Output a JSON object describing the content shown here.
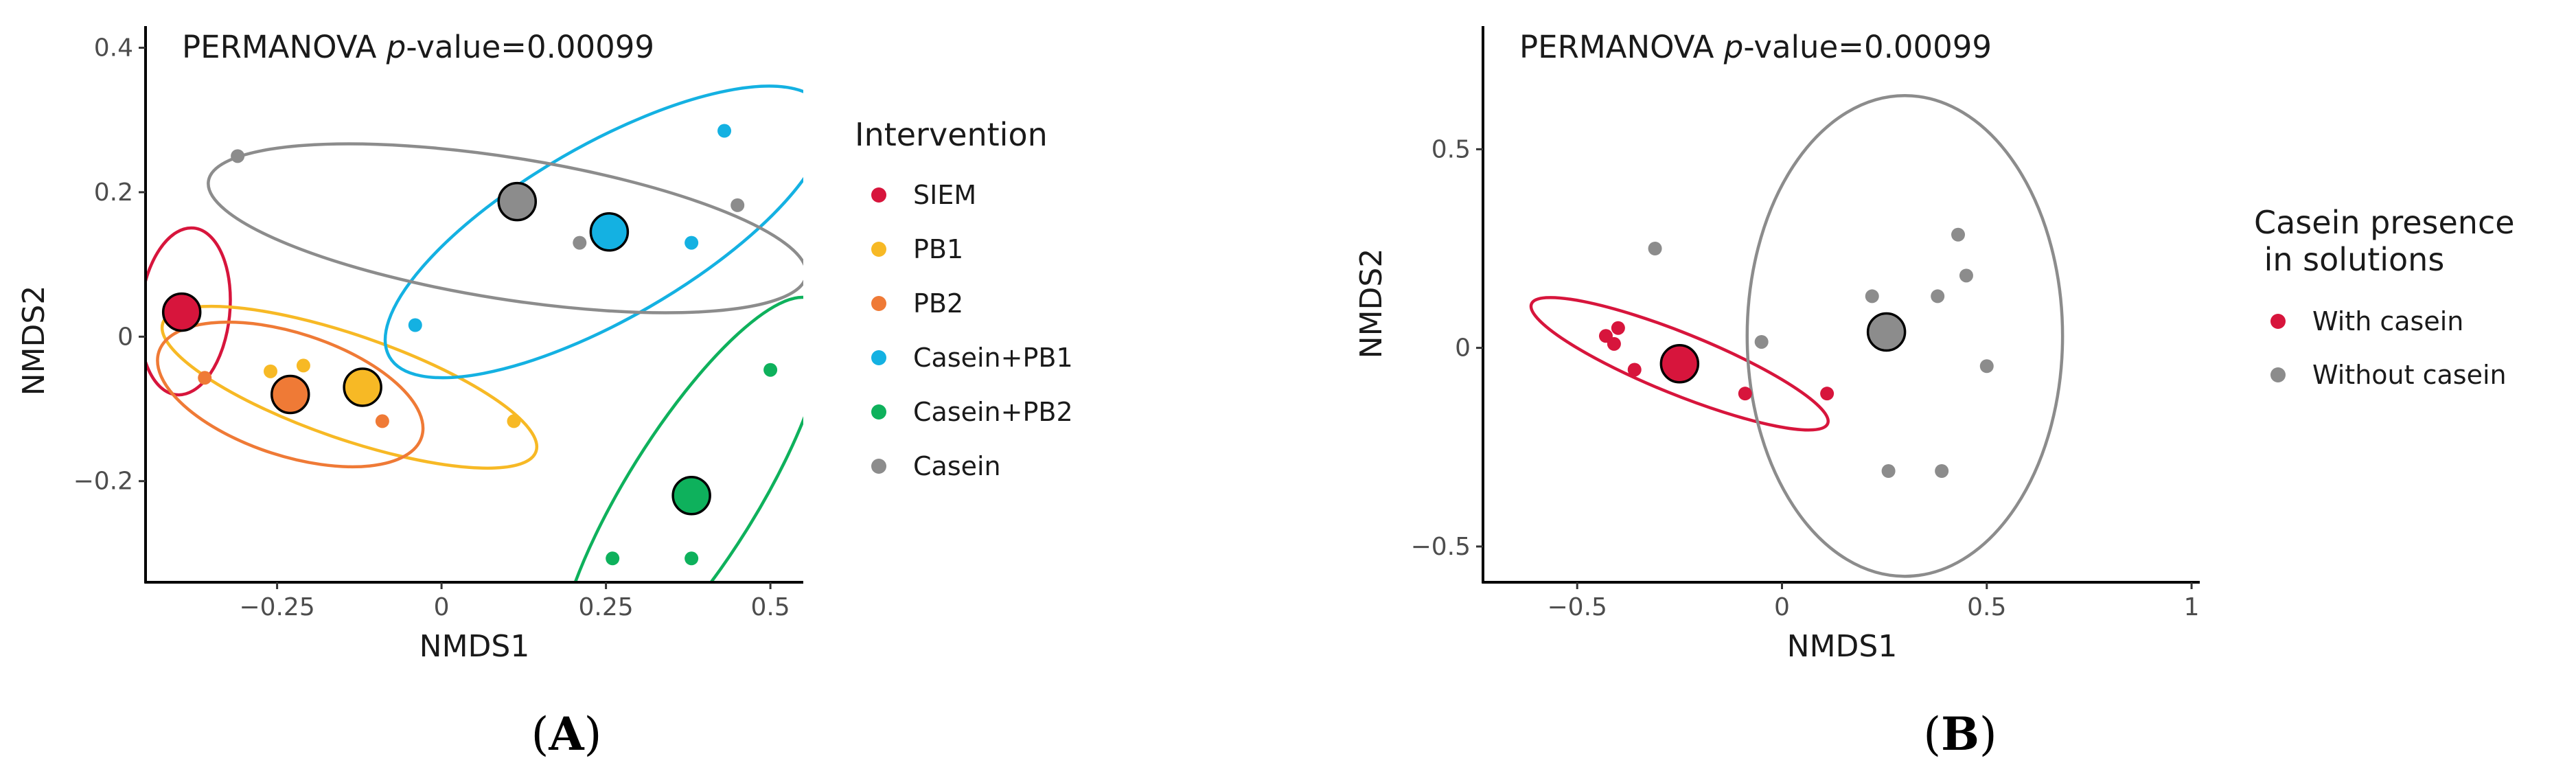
{
  "chart_data": [
    {
      "panel": "A",
      "type": "scatter",
      "annotation": {
        "prefix": "PERMANOVA ",
        "italic": "p",
        "suffix": "-value=0.00099"
      },
      "xlabel": "NMDS1",
      "ylabel": "NMDS2",
      "xlim": [
        -0.45,
        0.55
      ],
      "ylim": [
        -0.34,
        0.43
      ],
      "xticks": [
        {
          "value": -0.25,
          "label": "−0.25"
        },
        {
          "value": 0,
          "label": "0"
        },
        {
          "value": 0.25,
          "label": "0.25"
        },
        {
          "value": 0.5,
          "label": "0.5"
        }
      ],
      "yticks": [
        {
          "value": -0.2,
          "label": "−0.2"
        },
        {
          "value": 0,
          "label": "0"
        },
        {
          "value": 0.2,
          "label": "0.2"
        },
        {
          "value": 0.4,
          "label": "0.4"
        }
      ],
      "grid": false,
      "legend": {
        "title": "Intervention",
        "position": "right"
      },
      "series": [
        {
          "name": "SIEM",
          "color": "#d7153c",
          "points": [
            [
              -0.39,
              0.048
            ],
            [
              -0.395,
              0.035
            ]
          ],
          "centroid": [
            -0.395,
            0.034
          ],
          "ellipse": {
            "center": [
              -0.39,
              0.035
            ],
            "rx": 0.068,
            "ry": 0.116,
            "angle": -6
          }
        },
        {
          "name": "PB1",
          "color": "#f7b925",
          "points": [
            [
              -0.26,
              -0.048
            ],
            [
              -0.21,
              -0.04
            ],
            [
              0.11,
              -0.117
            ]
          ],
          "centroid": [
            -0.12,
            -0.07
          ],
          "ellipse": {
            "center": [
              -0.14,
              -0.07
            ],
            "rx": 0.3,
            "ry": 0.072,
            "angle": -19
          }
        },
        {
          "name": "PB2",
          "color": "#ef7a36",
          "points": [
            [
              -0.36,
              -0.057
            ],
            [
              -0.09,
              -0.117
            ]
          ],
          "centroid": [
            -0.23,
            -0.08
          ],
          "ellipse": {
            "center": [
              -0.23,
              -0.08
            ],
            "rx": 0.21,
            "ry": 0.085,
            "angle": -18
          }
        },
        {
          "name": "Casein+PB1",
          "color": "#14b1e2",
          "points": [
            [
              -0.04,
              0.016
            ],
            [
              0.38,
              0.13
            ],
            [
              0.43,
              0.285
            ]
          ],
          "centroid": [
            0.255,
            0.145
          ],
          "ellipse": {
            "center": [
              0.25,
              0.145
            ],
            "rx": 0.38,
            "ry": 0.12,
            "angle": 30
          }
        },
        {
          "name": "Casein+PB2",
          "color": "#0eb15c",
          "points": [
            [
              0.26,
              -0.307
            ],
            [
              0.38,
              -0.307
            ],
            [
              0.5,
              -0.046
            ]
          ],
          "centroid": [
            0.38,
            -0.22
          ],
          "ellipse": {
            "center": [
              0.38,
              -0.22
            ],
            "rx": 0.35,
            "ry": 0.09,
            "angle": 58
          }
        },
        {
          "name": "Casein",
          "color": "#8c8c8c",
          "points": [
            [
              -0.31,
              0.25
            ],
            [
              0.21,
              0.13
            ],
            [
              0.45,
              0.182
            ]
          ],
          "centroid": [
            0.115,
            0.187
          ],
          "ellipse": {
            "center": [
              0.1,
              0.15
            ],
            "rx": 0.46,
            "ry": 0.098,
            "angle": -9
          }
        }
      ]
    },
    {
      "panel": "B",
      "type": "scatter",
      "annotation": {
        "prefix": "PERMANOVA ",
        "italic": "p",
        "suffix": "-value=0.00099"
      },
      "xlabel": "NMDS1",
      "ylabel": "NMDS2",
      "xlim": [
        -0.73,
        1.02
      ],
      "ylim": [
        -0.59,
        0.81
      ],
      "xticks": [
        {
          "value": -0.5,
          "label": "−0.5"
        },
        {
          "value": 0,
          "label": "0"
        },
        {
          "value": 0.5,
          "label": "0.5"
        },
        {
          "value": 1,
          "label": "1"
        }
      ],
      "yticks": [
        {
          "value": -0.5,
          "label": "−0.5"
        },
        {
          "value": 0,
          "label": "0"
        },
        {
          "value": 0.5,
          "label": "0.5"
        }
      ],
      "grid": false,
      "legend": {
        "title_lines": [
          "Casein presence",
          " in solutions"
        ],
        "position": "right"
      },
      "series": [
        {
          "name": "With casein",
          "color": "#d7153c",
          "points": [
            [
              -0.43,
              0.03
            ],
            [
              -0.4,
              0.05
            ],
            [
              -0.41,
              0.01
            ],
            [
              -0.36,
              -0.055
            ],
            [
              -0.09,
              -0.115
            ],
            [
              0.11,
              -0.115
            ]
          ],
          "centroid": [
            -0.25,
            -0.04
          ],
          "ellipse": {
            "center": [
              -0.25,
              -0.04
            ],
            "rx": 0.39,
            "ry": 0.077,
            "angle": -22
          }
        },
        {
          "name": "Without casein",
          "color": "#8c8c8c",
          "points": [
            [
              -0.31,
              0.25
            ],
            [
              -0.05,
              0.015
            ],
            [
              0.22,
              0.13
            ],
            [
              0.26,
              -0.31
            ],
            [
              0.38,
              0.13
            ],
            [
              0.39,
              -0.31
            ],
            [
              0.43,
              0.285
            ],
            [
              0.45,
              0.182
            ],
            [
              0.5,
              -0.046
            ]
          ],
          "centroid": [
            0.255,
            0.04
          ],
          "ellipse": {
            "center": [
              0.3,
              0.03
            ],
            "rx": 0.385,
            "ry": 0.605,
            "angle": 0
          }
        }
      ]
    }
  ],
  "panel_labels": [
    {
      "open": "(",
      "letter": "A",
      "close": ")"
    },
    {
      "open": "(",
      "letter": "B",
      "close": ")"
    }
  ]
}
